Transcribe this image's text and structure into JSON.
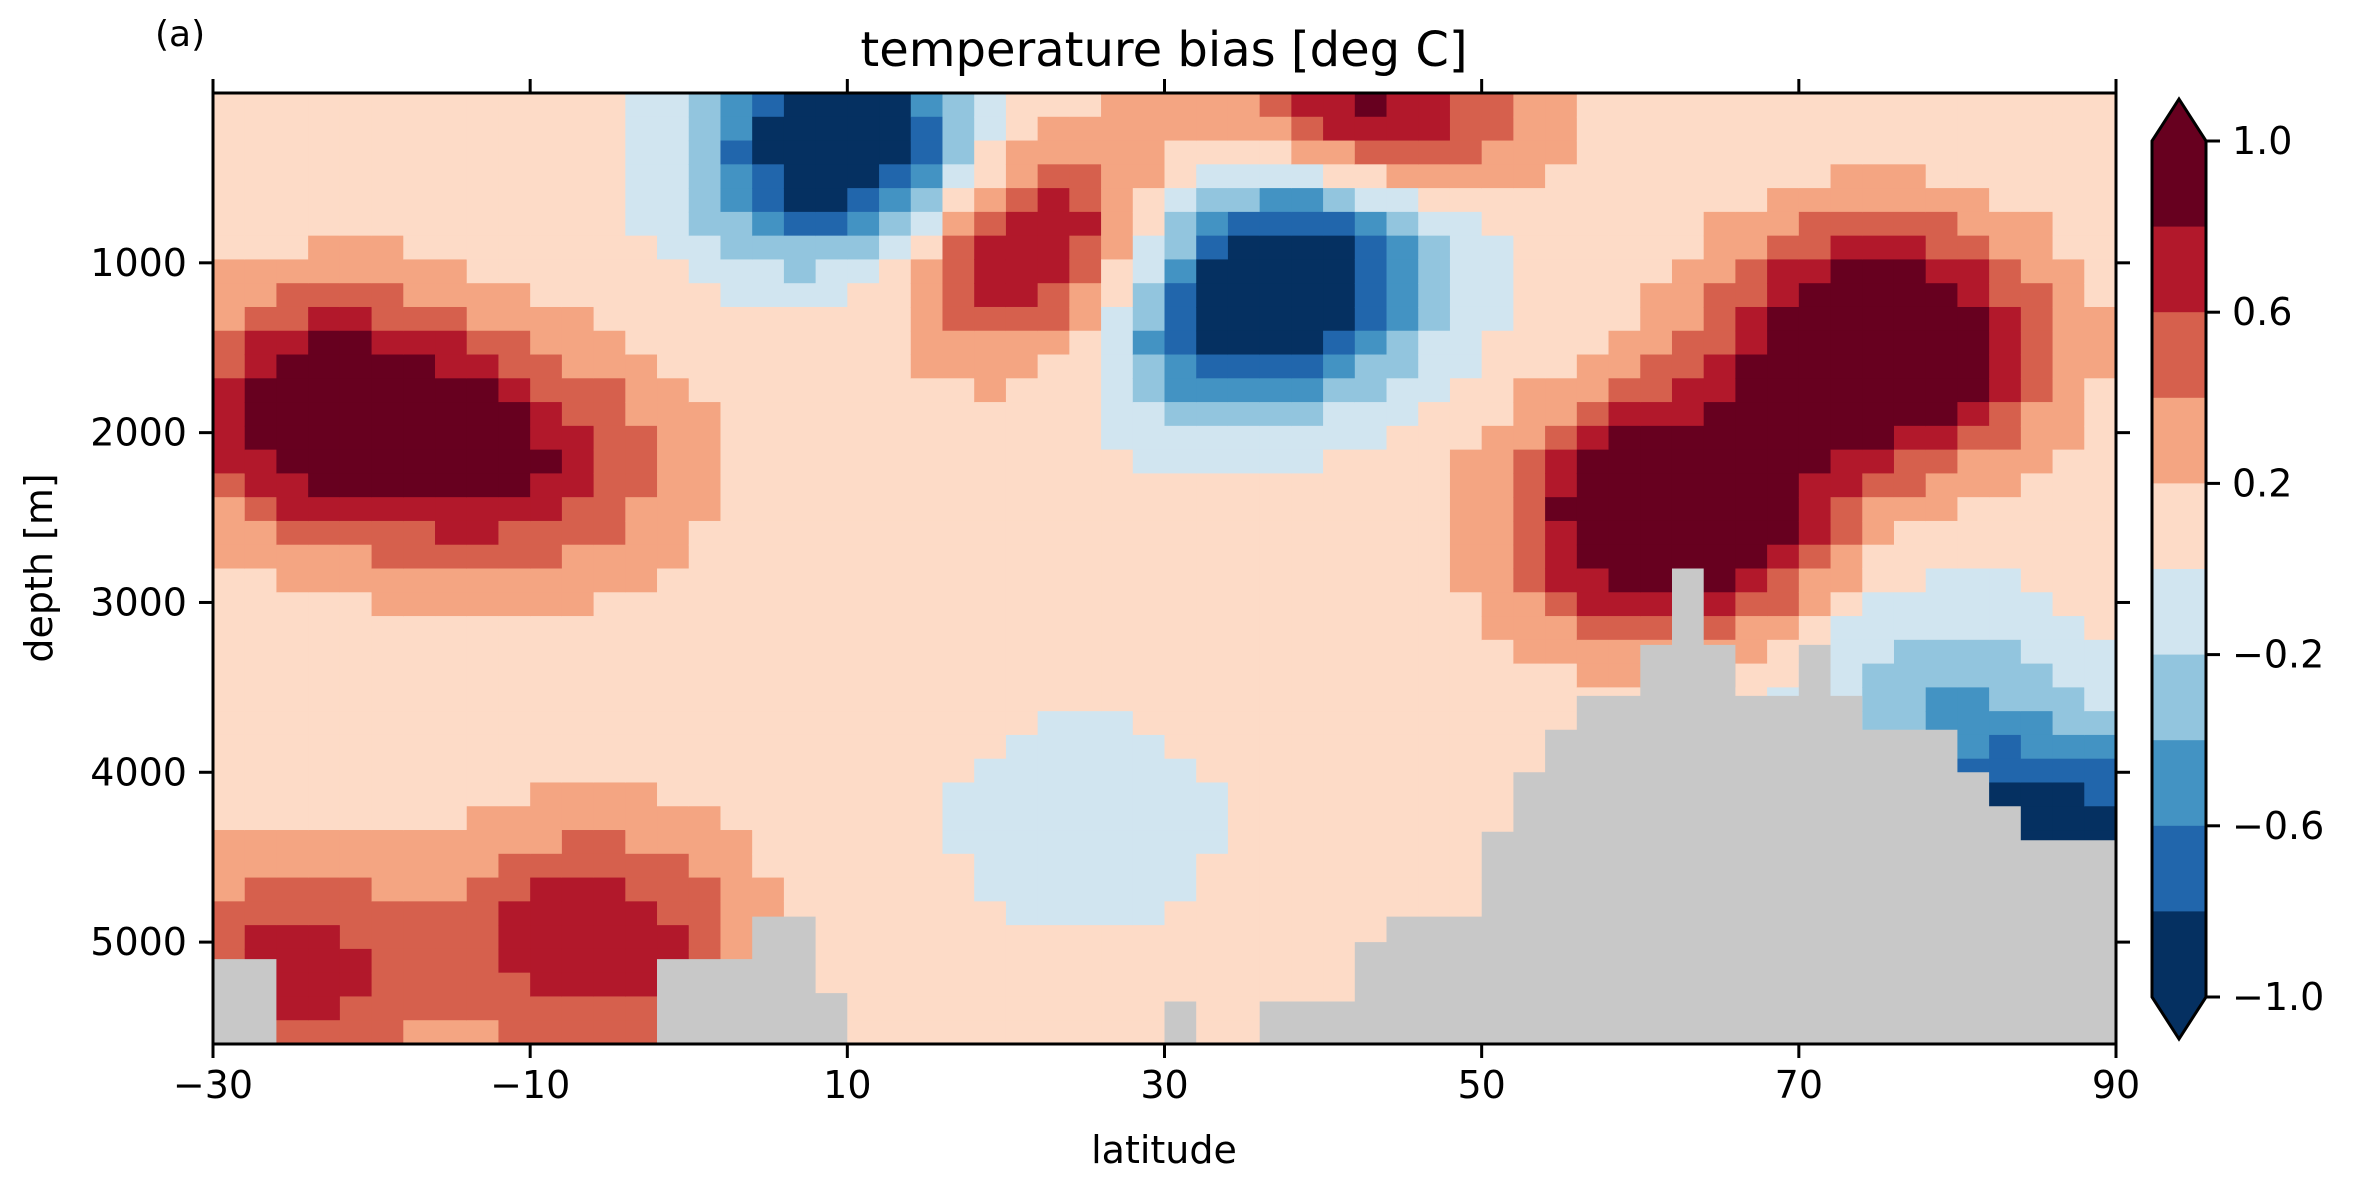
{
  "chart_data": {
    "type": "heatmap",
    "panel_label": "(a)",
    "title": "temperature bias [deg C]",
    "xlabel": "latitude",
    "ylabel": "depth [m]",
    "xlim": [
      -30,
      90
    ],
    "ylim": [
      5600,
      0
    ],
    "x_ticks": [
      -30,
      -10,
      10,
      30,
      50,
      70,
      90
    ],
    "x_tick_labels": [
      "−30",
      "−10",
      "10",
      "30",
      "50",
      "70",
      "90"
    ],
    "y_ticks": [
      1000,
      2000,
      3000,
      4000,
      5000
    ],
    "y_tick_labels": [
      "1000",
      "2000",
      "3000",
      "4000",
      "5000"
    ],
    "grid": false,
    "colorbar": {
      "levels": [
        -1.0,
        -0.8,
        -0.6,
        -0.4,
        -0.2,
        0.0,
        0.2,
        0.4,
        0.6,
        0.8,
        1.0
      ],
      "colors": [
        "#053061",
        "#2166ac",
        "#4393c3",
        "#92c5de",
        "#d1e5f0",
        "#fddbc7",
        "#f4a582",
        "#d6604d",
        "#b2182b",
        "#67001f"
      ],
      "tick_values": [
        1.0,
        0.6,
        0.2,
        -0.2,
        -0.6,
        -1.0
      ],
      "tick_labels": [
        "1.0",
        "0.6",
        "0.2",
        "−0.2",
        "−0.6",
        "−1.0"
      ],
      "extend": "both",
      "position": "right"
    },
    "field": {
      "description_units": "deg C",
      "base_value": 0.1,
      "features": [
        {
          "lat": 10,
          "depth": 350,
          "value": -1.2
        },
        {
          "lat": 75,
          "depth": 1500,
          "value": 1.4
        },
        {
          "lat": 62,
          "depth": 2500,
          "value": 1.4
        },
        {
          "lat": -22,
          "depth": 1900,
          "value": 1.2
        },
        {
          "lat": -10,
          "depth": 2200,
          "value": 0.7
        },
        {
          "lat": 22,
          "depth": 900,
          "value": 1.0
        },
        {
          "lat": 34,
          "depth": 1300,
          "value": -0.9
        },
        {
          "lat": 41,
          "depth": 800,
          "value": -0.8
        },
        {
          "lat": 43,
          "depth": 200,
          "value": 1.1
        },
        {
          "lat": 78,
          "depth": 3500,
          "value": -0.3
        },
        {
          "lat": 25,
          "depth": 4300,
          "value": -0.15
        },
        {
          "lat": -6,
          "depth": 5000,
          "value": 0.8
        },
        {
          "lat": -25,
          "depth": 5200,
          "value": 0.7
        },
        {
          "lat": 86,
          "depth": 4400,
          "value": -1.0
        }
      ]
    },
    "bathymetry": {
      "color": "#c8c8c8",
      "lat": [
        -30,
        -28,
        -26,
        -24,
        -22,
        -20,
        -18,
        -16,
        -14,
        -12,
        -10,
        -8,
        -6,
        -4,
        -2,
        0,
        2,
        4,
        6,
        8,
        10,
        12,
        14,
        16,
        18,
        20,
        22,
        24,
        26,
        28,
        30,
        32,
        34,
        36,
        38,
        40,
        42,
        44,
        46,
        48,
        50,
        52,
        54,
        56,
        58,
        60,
        62,
        64,
        66,
        68,
        70,
        72,
        74,
        76,
        78,
        80,
        82,
        84,
        86,
        88,
        90
      ],
      "depth": [
        5100,
        5100,
        5600,
        5600,
        5600,
        5600,
        5600,
        5600,
        5600,
        5600,
        5600,
        5600,
        5600,
        5600,
        5100,
        5100,
        5100,
        4850,
        4850,
        5300,
        5600,
        5600,
        5600,
        5600,
        5600,
        5600,
        5600,
        5600,
        5600,
        5600,
        5350,
        5600,
        5600,
        5350,
        5350,
        5350,
        5000,
        4850,
        4850,
        4850,
        4350,
        4000,
        3750,
        3550,
        3550,
        3250,
        2800,
        3250,
        3550,
        3550,
        3250,
        3550,
        3750,
        3750,
        3750,
        4000,
        4200,
        4400,
        4400,
        4400,
        4400
      ]
    }
  }
}
